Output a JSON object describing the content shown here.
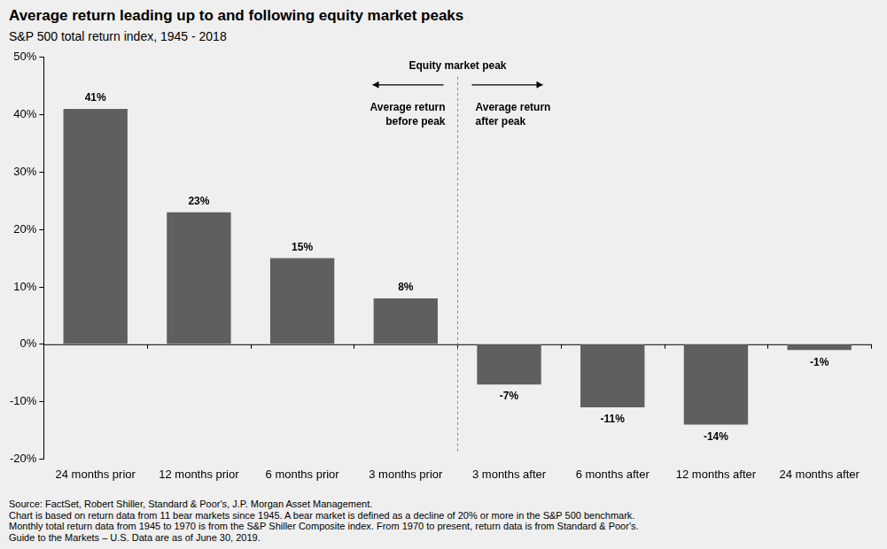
{
  "chart_data": {
    "type": "bar",
    "title": "Average return leading up to and following equity market peaks",
    "subtitle": "S&P 500 total return index, 1945 - 2018",
    "categories": [
      "24 months prior",
      "12 months prior",
      "6 months prior",
      "3 months prior",
      "3 months after",
      "6 months after",
      "12 months after",
      "24 months after"
    ],
    "values": [
      41,
      23,
      15,
      8,
      -7,
      -11,
      -14,
      -1
    ],
    "value_labels": [
      "41%",
      "23%",
      "15%",
      "8%",
      "-7%",
      "-11%",
      "-14%",
      "-1%"
    ],
    "color": "#5f5f5f",
    "ylim": [
      -20,
      50
    ],
    "yticks": [
      {
        "value": -20,
        "label": "-20%"
      },
      {
        "value": -10,
        "label": "-10%"
      },
      {
        "value": 0,
        "label": "0%"
      },
      {
        "value": 10,
        "label": "10%"
      },
      {
        "value": 20,
        "label": "20%"
      },
      {
        "value": 30,
        "label": "30%"
      },
      {
        "value": 40,
        "label": "40%"
      },
      {
        "value": 50,
        "label": "50%"
      }
    ],
    "grid": false,
    "data_labels": true,
    "annotations": {
      "peak": "Equity market peak",
      "before": [
        "Average return",
        "before peak"
      ],
      "after": [
        "Average return",
        "after peak"
      ]
    },
    "notes": [
      "Source: FactSet, Robert Shiller, Standard & Poor's, J.P. Morgan Asset Management.",
      "Chart is based on return data from 11 bear markets since 1945. A bear market is defined as a decline of 20% or more in the S&P 500 benchmark.",
      "Monthly total return data from 1945 to 1970 is from the S&P Shiller Composite index. From 1970 to present, return data is from Standard & Poor's.",
      "Guide to the Markets – U.S. Data are as of June 30, 2019."
    ]
  }
}
